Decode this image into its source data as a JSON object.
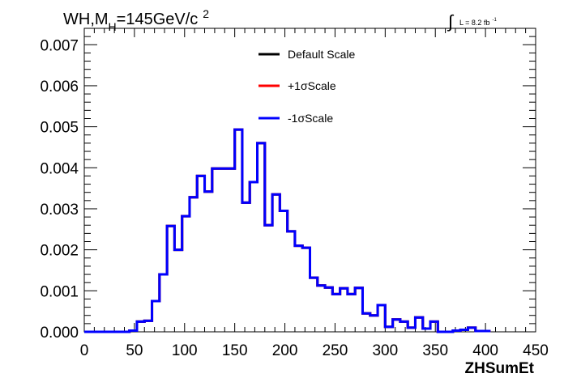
{
  "chart_data": {
    "type": "line",
    "title": "WH,M",
    "title_sub": "H",
    "title_tail": "=145GeV/c",
    "title_sup": "2",
    "lumi": {
      "prefix": "L = 8.2 fb",
      "sup": "-1"
    },
    "xlabel": "ZHSumEt",
    "ylabel": "",
    "xlim": [
      0,
      450
    ],
    "ylim": [
      0,
      0.0074
    ],
    "grid": false,
    "legend_position": "top-right",
    "xticks": [
      0,
      50,
      100,
      150,
      200,
      250,
      300,
      350,
      400,
      450
    ],
    "xtick_labels": [
      "0",
      "50",
      "100",
      "150",
      "200",
      "250",
      "300",
      "350",
      "400",
      "450"
    ],
    "yticks": [
      0.0,
      0.001,
      0.002,
      0.003,
      0.004,
      0.005,
      0.006,
      0.007
    ],
    "ytick_labels": [
      "0.000",
      "0.001",
      "0.002",
      "0.003",
      "0.004",
      "0.005",
      "0.006",
      "0.007"
    ],
    "bin_width": 7.5,
    "bin_edges_start": 0,
    "series": [
      {
        "name": "Default Scale",
        "color": "#000000",
        "values": [
          0,
          0,
          0,
          0,
          0,
          0,
          3e-05,
          0.00025,
          0.00027,
          0.00075,
          0.0014,
          0.00258,
          0.002,
          0.00282,
          0.00328,
          0.0038,
          0.00342,
          0.00398,
          0.00398,
          0.00398,
          0.00493,
          0.00315,
          0.00365,
          0.0046,
          0.0026,
          0.00335,
          0.00295,
          0.00245,
          0.0021,
          0.00205,
          0.00132,
          0.00113,
          0.00108,
          0.00092,
          0.00106,
          0.00092,
          0.00107,
          0.00045,
          0.0004,
          0.00065,
          0.00012,
          0.0003,
          0.00025,
          0.0001,
          0.00035,
          8e-05,
          0.00025,
          0,
          0,
          3e-05,
          5e-05,
          0.0001,
          2e-05,
          2e-05
        ]
      },
      {
        "name": "+1σScale",
        "color": "#ff0000",
        "values": [
          0,
          0,
          0,
          0,
          0,
          0,
          3e-05,
          0.00025,
          0.00027,
          0.00075,
          0.0014,
          0.00258,
          0.002,
          0.00282,
          0.00328,
          0.0038,
          0.00342,
          0.00398,
          0.00398,
          0.00398,
          0.00493,
          0.00315,
          0.00365,
          0.0046,
          0.0026,
          0.00335,
          0.00295,
          0.00245,
          0.0021,
          0.00205,
          0.00132,
          0.00113,
          0.00108,
          0.00092,
          0.00106,
          0.00092,
          0.00107,
          0.00045,
          0.0004,
          0.00065,
          0.00012,
          0.0003,
          0.00025,
          0.0001,
          0.00035,
          8e-05,
          0.00025,
          0,
          0,
          3e-05,
          5e-05,
          0.0001,
          2e-05,
          2e-05
        ]
      },
      {
        "name": "-1σScale",
        "color": "#0000ff",
        "values": [
          0,
          0,
          0,
          0,
          0,
          0,
          3e-05,
          0.00025,
          0.00027,
          0.00075,
          0.0014,
          0.00258,
          0.002,
          0.00282,
          0.00328,
          0.0038,
          0.00342,
          0.00398,
          0.00398,
          0.00398,
          0.00493,
          0.00315,
          0.00365,
          0.0046,
          0.0026,
          0.00335,
          0.00295,
          0.00245,
          0.0021,
          0.00205,
          0.00132,
          0.00113,
          0.00108,
          0.00092,
          0.00106,
          0.00092,
          0.00107,
          0.00045,
          0.0004,
          0.00065,
          0.00012,
          0.0003,
          0.00025,
          0.0001,
          0.00035,
          8e-05,
          0.00025,
          0,
          0,
          3e-05,
          5e-05,
          0.0001,
          2e-05,
          2e-05
        ]
      }
    ]
  }
}
